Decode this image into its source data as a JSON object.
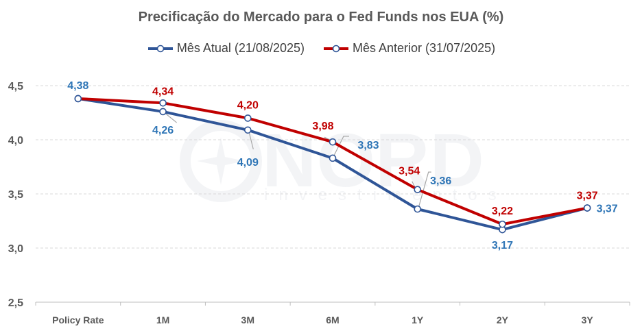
{
  "chart_data": {
    "type": "line",
    "title": "Precificação do Mercado para o Fed Funds nos EUA (%)",
    "xlabel": "",
    "ylabel": "",
    "categories": [
      "Policy Rate",
      "1M",
      "3M",
      "6M",
      "1Y",
      "2Y",
      "3Y"
    ],
    "ylim": [
      2.5,
      4.5
    ],
    "yticks": [
      2.5,
      3.0,
      3.5,
      4.0,
      4.5
    ],
    "ytick_labels": [
      "2,5",
      "3,0",
      "3,5",
      "4,0",
      "4,5"
    ],
    "grid": true,
    "legend_position": "top-center",
    "series": [
      {
        "name": "Mês Atual (21/08/2025)",
        "color": "#2F5597",
        "label_color": "#2E75B6",
        "values": [
          4.38,
          4.26,
          4.09,
          3.83,
          3.36,
          3.17,
          3.37
        ],
        "labels": [
          "4,38",
          "4,26",
          "4,09",
          "3,83",
          "3,36",
          "3,17",
          "3,37"
        ]
      },
      {
        "name": "Mês Anterior (31/07/2025)",
        "color": "#C00000",
        "label_color": "#C00000",
        "values": [
          4.38,
          4.34,
          4.2,
          3.98,
          3.54,
          3.22,
          3.37
        ],
        "labels": [
          "",
          "4,34",
          "4,20",
          "3,98",
          "3,54",
          "3,22",
          "3,37"
        ]
      }
    ]
  },
  "watermark": {
    "brand": "NORD",
    "sub": "investimentos"
  }
}
